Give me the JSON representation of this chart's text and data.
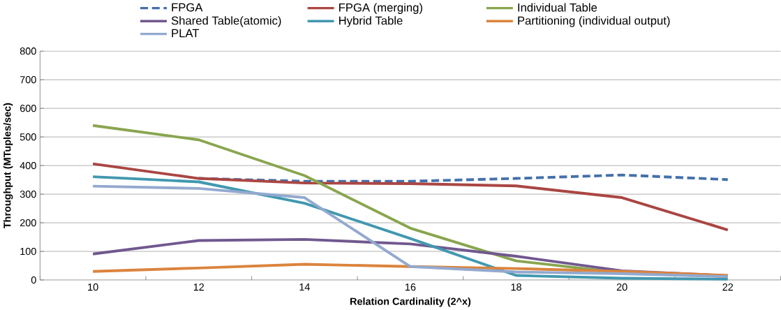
{
  "chart_data": {
    "type": "line",
    "xlabel": "Relation Cardinality (2^x)",
    "ylabel": "Throughput (MTuples/sec)",
    "categories": [
      "10",
      "12",
      "14",
      "16",
      "18",
      "20",
      "22"
    ],
    "ylim": [
      0,
      800
    ],
    "yticks": [
      0,
      100,
      200,
      300,
      400,
      500,
      600,
      700,
      800
    ],
    "grid": "y",
    "legend": "top",
    "series": [
      {
        "name": "FPGA",
        "color": "#4470aa",
        "line_style": "dashed",
        "values": [
          null,
          355,
          345,
          345,
          355,
          367,
          351
        ]
      },
      {
        "name": "FPGA (merging)",
        "color": "#aa4643",
        "values": [
          406,
          355,
          339,
          337,
          329,
          288,
          175
        ]
      },
      {
        "name": "Individual Table",
        "color": "#89a54e",
        "values": [
          540,
          490,
          365,
          181,
          67,
          25,
          12
        ]
      },
      {
        "name": "Shared Table(atomic)",
        "color": "#71588f",
        "values": [
          91,
          138,
          142,
          126,
          83,
          32,
          15
        ]
      },
      {
        "name": "Hybrid Table",
        "color": "#4198af",
        "values": [
          361,
          343,
          268,
          145,
          16,
          6,
          3
        ]
      },
      {
        "name": "Partitioning (individual output)",
        "color": "#db843d",
        "values": [
          30,
          42,
          55,
          47,
          40,
          30,
          16
        ]
      },
      {
        "name": "PLAT",
        "color": "#93a9cf",
        "values": [
          328,
          320,
          288,
          47,
          28,
          22,
          12
        ]
      }
    ]
  }
}
